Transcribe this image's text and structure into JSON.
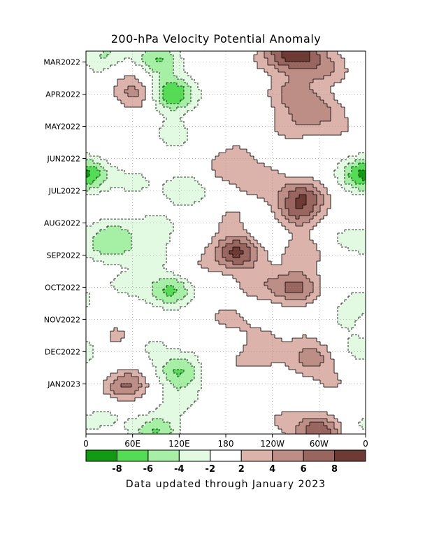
{
  "chart_data": {
    "type": "heatmap",
    "title": "200-hPa Velocity Potential Anomaly",
    "xlabel": "",
    "ylabel": "",
    "x_tick_labels": [
      "0",
      "60E",
      "120E",
      "180",
      "120W",
      "60W",
      "0"
    ],
    "x_tick_lons": [
      0,
      60,
      120,
      180,
      240,
      300,
      360
    ],
    "xlim": [
      0,
      360
    ],
    "y_tick_labels": [
      "MAR2022",
      "APR2022",
      "MAY2022",
      "JUN2022",
      "JUL2022",
      "AUG2022",
      "SEP2022",
      "OCT2022",
      "NOV2022",
      "DEC2022",
      "JAN2023"
    ],
    "y_tick_months": [
      1,
      2,
      3,
      4,
      5,
      6,
      7,
      8,
      9,
      10,
      11
    ],
    "ylim": [
      0.66,
      12.56
    ],
    "y_orientation": "time increases downward",
    "grid": true,
    "contour_levels": [
      -8,
      -6,
      -4,
      -2,
      2,
      4,
      6,
      8
    ],
    "colorbar": {
      "tick_labels": [
        "-8",
        "-6",
        "-4",
        "-2",
        "2",
        "4",
        "6",
        "8"
      ],
      "colors": [
        "#139a13",
        "#55dc55",
        "#a6f0a6",
        "#e2fae2",
        "#ffffff",
        "#dbb3ab",
        "#bd8e86",
        "#98665f",
        "#6e3b34"
      ]
    },
    "zero_label": "0",
    "anomaly_features": [
      {
        "lon": 20,
        "month": 1.0,
        "value": -3.0
      },
      {
        "lon": 35,
        "month": 0.65,
        "value": -2.5
      },
      {
        "lon": 55,
        "month": 1.2,
        "value": 2.5
      },
      {
        "lon": 90,
        "month": 0.95,
        "value": -6.5
      },
      {
        "lon": 65,
        "month": 2.0,
        "value": 5.0
      },
      {
        "lon": 110,
        "month": 2.0,
        "value": -8.5
      },
      {
        "lon": 15,
        "month": 2.6,
        "value": -2.0
      },
      {
        "lon": 190,
        "month": 1.3,
        "value": 1.5
      },
      {
        "lon": 250,
        "month": 0.8,
        "value": 4.5
      },
      {
        "lon": 275,
        "month": 0.6,
        "value": 6.5
      },
      {
        "lon": 290,
        "month": 1.2,
        "value": 3.0
      },
      {
        "lon": 265,
        "month": 2.0,
        "value": 4.5
      },
      {
        "lon": 300,
        "month": 2.5,
        "value": 4.0
      },
      {
        "lon": 320,
        "month": 1.2,
        "value": 2.5
      },
      {
        "lon": 265,
        "month": 3.0,
        "value": 3.0
      },
      {
        "lon": 110,
        "month": 3.3,
        "value": -3.5
      },
      {
        "lon": 75,
        "month": 3.5,
        "value": 1.5
      },
      {
        "lon": 200,
        "month": 3.7,
        "value": 1.5
      },
      {
        "lon": 330,
        "month": 3.0,
        "value": 2.0
      },
      {
        "lon": 180,
        "month": 4.3,
        "value": 3.0
      },
      {
        "lon": 225,
        "month": 4.7,
        "value": 3.5
      },
      {
        "lon": 280,
        "month": 5.2,
        "value": 7.0
      },
      {
        "lon": 270,
        "month": 5.8,
        "value": 4.5
      },
      {
        "lon": 0,
        "month": 4.5,
        "value": -4.0
      },
      {
        "lon": 355,
        "month": 4.5,
        "value": -4.5
      },
      {
        "lon": 130,
        "month": 5.0,
        "value": -4.0
      },
      {
        "lon": 60,
        "month": 4.8,
        "value": -3.0
      },
      {
        "lon": 55,
        "month": 5.4,
        "value": 1.5
      },
      {
        "lon": 40,
        "month": 6.1,
        "value": -2.5
      },
      {
        "lon": 90,
        "month": 6.1,
        "value": -3.0
      },
      {
        "lon": 190,
        "month": 5.9,
        "value": 2.5
      },
      {
        "lon": 230,
        "month": 6.2,
        "value": -2.0
      },
      {
        "lon": 335,
        "month": 6.5,
        "value": -2.5
      },
      {
        "lon": 195,
        "month": 6.9,
        "value": 8.5
      },
      {
        "lon": 280,
        "month": 6.9,
        "value": 3.5
      },
      {
        "lon": 30,
        "month": 6.7,
        "value": -5.0
      },
      {
        "lon": 85,
        "month": 7.0,
        "value": -3.0
      },
      {
        "lon": 140,
        "month": 7.4,
        "value": 2.0
      },
      {
        "lon": 270,
        "month": 8.0,
        "value": 6.5
      },
      {
        "lon": 220,
        "month": 7.9,
        "value": 3.0
      },
      {
        "lon": 110,
        "month": 8.1,
        "value": -6.5
      },
      {
        "lon": 50,
        "month": 8.0,
        "value": -3.0
      },
      {
        "lon": 355,
        "month": 8.4,
        "value": -2.5
      },
      {
        "lon": 35,
        "month": 8.5,
        "value": 1.5
      },
      {
        "lon": 180,
        "month": 9.1,
        "value": 3.5
      },
      {
        "lon": 280,
        "month": 9.2,
        "value": 1.5
      },
      {
        "lon": 330,
        "month": 9.0,
        "value": -2.0
      },
      {
        "lon": 80,
        "month": 9.8,
        "value": -2.5
      },
      {
        "lon": 170,
        "month": 9.6,
        "value": -3.0
      },
      {
        "lon": 40,
        "month": 9.6,
        "value": 3.0
      },
      {
        "lon": 225,
        "month": 9.6,
        "value": 2.0
      },
      {
        "lon": 355,
        "month": 9.9,
        "value": -3.0
      },
      {
        "lon": 290,
        "month": 10.2,
        "value": 5.0
      },
      {
        "lon": 120,
        "month": 10.6,
        "value": -6.0
      },
      {
        "lon": 180,
        "month": 10.4,
        "value": 1.5
      },
      {
        "lon": 220,
        "month": 10.2,
        "value": 2.5
      },
      {
        "lon": 30,
        "month": 10.6,
        "value": -2.0
      },
      {
        "lon": 50,
        "month": 11.0,
        "value": 7.0
      },
      {
        "lon": 120,
        "month": 11.5,
        "value": -3.0
      },
      {
        "lon": 200,
        "month": 11.2,
        "value": -2.0
      },
      {
        "lon": 320,
        "month": 11.0,
        "value": 2.0
      },
      {
        "lon": 90,
        "month": 12.5,
        "value": -6.0
      },
      {
        "lon": 30,
        "month": 12.0,
        "value": -2.0
      },
      {
        "lon": 300,
        "month": 12.5,
        "value": 8.0
      },
      {
        "lon": 250,
        "month": 12.1,
        "value": 2.0
      },
      {
        "lon": 350,
        "month": 12.3,
        "value": -2.0
      },
      {
        "lon": 180,
        "month": 12.3,
        "value": 1.5
      }
    ]
  },
  "footnote": "Data updated through January 2023"
}
